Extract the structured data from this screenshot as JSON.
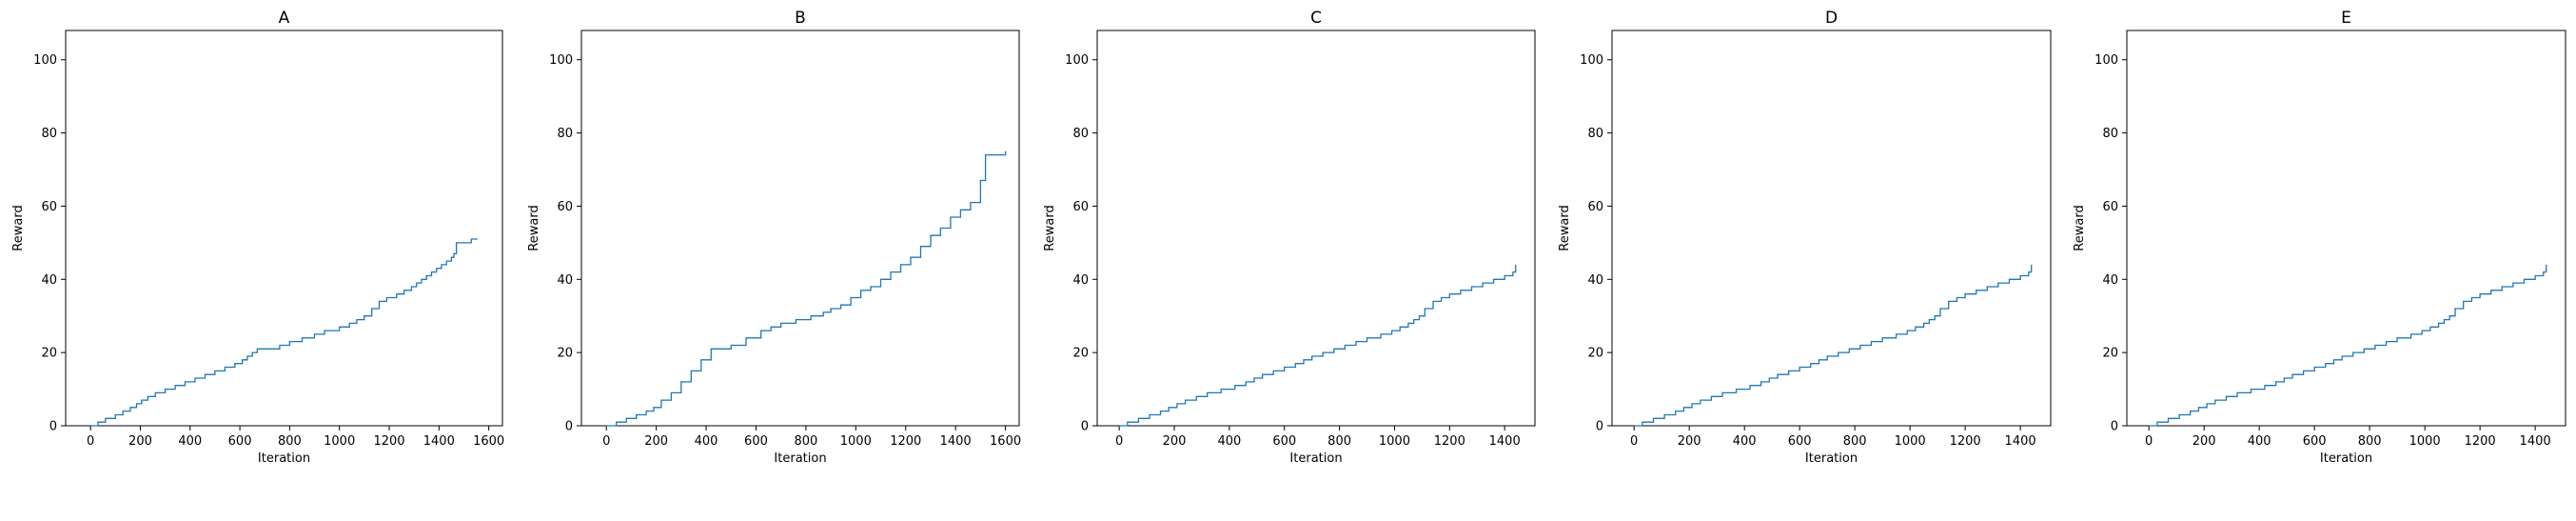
{
  "figure": {
    "background": "#ffffff",
    "line_color": "#1f77b4"
  },
  "chart_data": [
    {
      "type": "line",
      "title": "A",
      "xlabel": "Iteration",
      "ylabel": "Reward",
      "xlim": [
        -100,
        1655
      ],
      "ylim": [
        0,
        108
      ],
      "xticks": [
        0,
        200,
        400,
        600,
        800,
        1000,
        1200,
        1400,
        1600
      ],
      "yticks": [
        0,
        20,
        40,
        60,
        80,
        100
      ],
      "grid": false,
      "series": [
        {
          "x": [
            0,
            30,
            60,
            100,
            130,
            160,
            185,
            205,
            230,
            260,
            300,
            340,
            380,
            420,
            460,
            500,
            540,
            580,
            610,
            630,
            650,
            670,
            700,
            760,
            800,
            850,
            900,
            940,
            1000,
            1040,
            1070,
            1100,
            1130,
            1160,
            1190,
            1230,
            1260,
            1290,
            1310,
            1330,
            1350,
            1370,
            1390,
            1410,
            1430,
            1450,
            1460,
            1470,
            1500,
            1530,
            1555
          ],
          "y": [
            0,
            1,
            2,
            3,
            4,
            5,
            6,
            7,
            8,
            9,
            10,
            11,
            12,
            13,
            14,
            15,
            16,
            17,
            18,
            19,
            20,
            21,
            21,
            22,
            23,
            24,
            25,
            26,
            27,
            28,
            29,
            30,
            32,
            34,
            35,
            36,
            37,
            38,
            39,
            40,
            41,
            42,
            43,
            44,
            45,
            46,
            47,
            50,
            50,
            51,
            51
          ]
        }
      ]
    },
    {
      "type": "line",
      "title": "B",
      "xlabel": "Iteration",
      "ylabel": "Reward",
      "xlim": [
        -100,
        1655
      ],
      "ylim": [
        0,
        108
      ],
      "xticks": [
        0,
        200,
        400,
        600,
        800,
        1000,
        1200,
        1400,
        1600
      ],
      "yticks": [
        0,
        20,
        40,
        60,
        80,
        100
      ],
      "grid": false,
      "series": [
        {
          "x": [
            0,
            40,
            80,
            120,
            160,
            190,
            220,
            260,
            300,
            340,
            380,
            420,
            440,
            500,
            560,
            620,
            660,
            700,
            760,
            820,
            870,
            900,
            940,
            980,
            1020,
            1060,
            1100,
            1140,
            1180,
            1220,
            1260,
            1300,
            1340,
            1380,
            1420,
            1460,
            1480,
            1500,
            1520,
            1540,
            1580,
            1600
          ],
          "y": [
            0,
            1,
            2,
            3,
            4,
            5,
            7,
            9,
            12,
            15,
            18,
            21,
            21,
            22,
            24,
            26,
            27,
            28,
            29,
            30,
            31,
            32,
            33,
            35,
            37,
            38,
            40,
            42,
            44,
            46,
            49,
            52,
            54,
            57,
            59,
            61,
            61,
            67,
            74,
            74,
            74,
            75
          ]
        }
      ]
    },
    {
      "type": "line",
      "title": "C",
      "xlabel": "Iteration",
      "ylabel": "Reward",
      "xlim": [
        -80,
        1510
      ],
      "ylim": [
        0,
        108
      ],
      "xticks": [
        0,
        200,
        400,
        600,
        800,
        1000,
        1200,
        1400
      ],
      "yticks": [
        0,
        20,
        40,
        60,
        80,
        100
      ],
      "grid": false,
      "series": [
        {
          "x": [
            0,
            30,
            70,
            110,
            150,
            180,
            210,
            240,
            280,
            320,
            370,
            420,
            460,
            490,
            520,
            560,
            600,
            640,
            670,
            700,
            740,
            780,
            820,
            860,
            900,
            950,
            990,
            1020,
            1050,
            1070,
            1090,
            1110,
            1140,
            1170,
            1200,
            1240,
            1280,
            1320,
            1360,
            1400,
            1430,
            1440
          ],
          "y": [
            0,
            1,
            2,
            3,
            4,
            5,
            6,
            7,
            8,
            9,
            10,
            11,
            12,
            13,
            14,
            15,
            16,
            17,
            18,
            19,
            20,
            21,
            22,
            23,
            24,
            25,
            26,
            27,
            28,
            29,
            30,
            32,
            34,
            35,
            36,
            37,
            38,
            39,
            40,
            41,
            42,
            44
          ]
        }
      ]
    },
    {
      "type": "line",
      "title": "D",
      "xlabel": "Iteration",
      "ylabel": "Reward",
      "xlim": [
        -80,
        1510
      ],
      "ylim": [
        0,
        108
      ],
      "xticks": [
        0,
        200,
        400,
        600,
        800,
        1000,
        1200,
        1400
      ],
      "yticks": [
        0,
        20,
        40,
        60,
        80,
        100
      ],
      "grid": false,
      "series": [
        {
          "x": [
            0,
            30,
            70,
            110,
            150,
            180,
            210,
            240,
            280,
            320,
            370,
            420,
            460,
            490,
            520,
            560,
            600,
            640,
            670,
            700,
            740,
            780,
            820,
            860,
            900,
            950,
            990,
            1020,
            1050,
            1070,
            1090,
            1110,
            1140,
            1170,
            1200,
            1240,
            1280,
            1320,
            1360,
            1400,
            1430,
            1440
          ],
          "y": [
            0,
            1,
            2,
            3,
            4,
            5,
            6,
            7,
            8,
            9,
            10,
            11,
            12,
            13,
            14,
            15,
            16,
            17,
            18,
            19,
            20,
            21,
            22,
            23,
            24,
            25,
            26,
            27,
            28,
            29,
            30,
            32,
            34,
            35,
            36,
            37,
            38,
            39,
            40,
            41,
            42,
            44
          ]
        }
      ]
    },
    {
      "type": "line",
      "title": "E",
      "xlabel": "Iteration",
      "ylabel": "Reward",
      "xlim": [
        -80,
        1510
      ],
      "ylim": [
        0,
        108
      ],
      "xticks": [
        0,
        200,
        400,
        600,
        800,
        1000,
        1200,
        1400
      ],
      "yticks": [
        0,
        20,
        40,
        60,
        80,
        100
      ],
      "grid": false,
      "series": [
        {
          "x": [
            0,
            30,
            70,
            110,
            150,
            180,
            210,
            240,
            280,
            320,
            370,
            420,
            460,
            490,
            520,
            560,
            600,
            640,
            670,
            700,
            740,
            780,
            820,
            860,
            900,
            950,
            990,
            1020,
            1050,
            1070,
            1090,
            1110,
            1140,
            1170,
            1200,
            1240,
            1280,
            1320,
            1360,
            1400,
            1430,
            1440
          ],
          "y": [
            0,
            1,
            2,
            3,
            4,
            5,
            6,
            7,
            8,
            9,
            10,
            11,
            12,
            13,
            14,
            15,
            16,
            17,
            18,
            19,
            20,
            21,
            22,
            23,
            24,
            25,
            26,
            27,
            28,
            29,
            30,
            32,
            34,
            35,
            36,
            37,
            38,
            39,
            40,
            41,
            42,
            44
          ]
        }
      ]
    }
  ]
}
